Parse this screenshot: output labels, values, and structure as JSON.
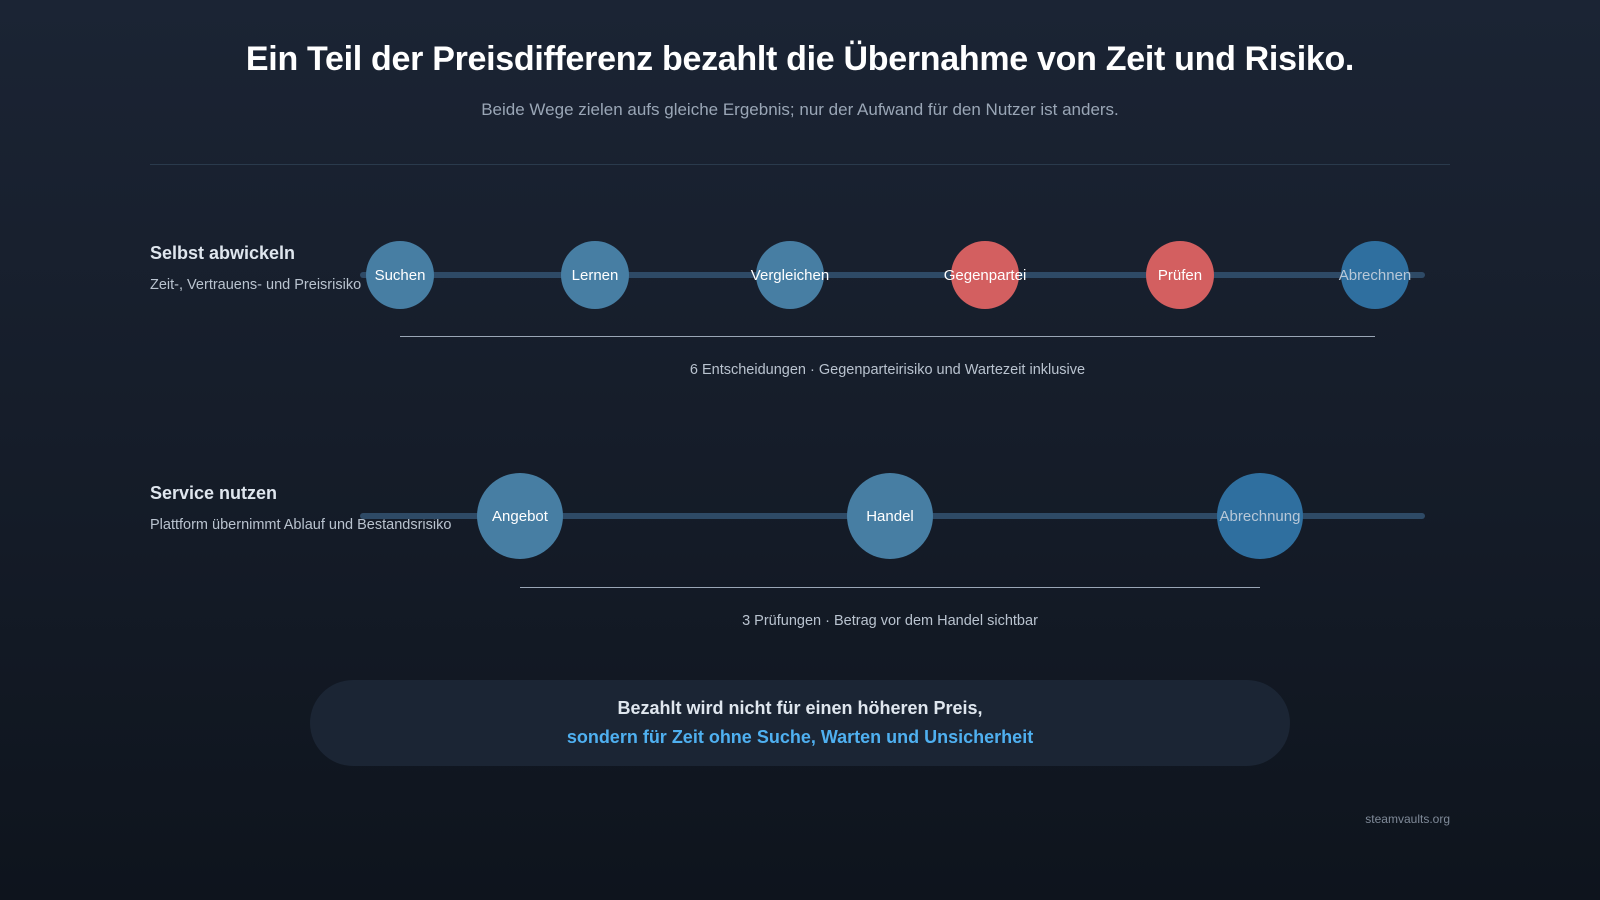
{
  "header": {
    "title": "Ein Teil der Preisdifferenz bezahlt die Übernahme von Zeit und Risiko.",
    "subtitle": "Beide Wege zielen aufs gleiche Ergebnis; nur der Aufwand für den Nutzer ist anders."
  },
  "rows": [
    {
      "label": "Selbst abwickeln",
      "description": "Zeit-, Vertrauens- und Preisrisiko",
      "steps": [
        {
          "label": "Suchen",
          "status": "normal"
        },
        {
          "label": "Lernen",
          "status": "normal"
        },
        {
          "label": "Vergleichen",
          "status": "normal"
        },
        {
          "label": "Gegenpartei",
          "status": "risk"
        },
        {
          "label": "Prüfen",
          "status": "risk"
        },
        {
          "label": "Abrechnen",
          "status": "final"
        }
      ],
      "summary": "6 Entscheidungen · Gegenparteirisiko und Wartezeit inklusive"
    },
    {
      "label": "Service nutzen",
      "description": "Plattform übernimmt Ablauf und Bestandsrisiko",
      "steps": [
        {
          "label": "Angebot",
          "status": "normal"
        },
        {
          "label": "Handel",
          "status": "normal"
        },
        {
          "label": "Abrechnung",
          "status": "final"
        }
      ],
      "summary": "3 Prüfungen · Betrag vor dem Handel sichtbar"
    }
  ],
  "callout": {
    "line1": "Bezahlt wird nicht für einen höheren Preis,",
    "line2": "sondern für Zeit ohne Suche, Warten und Unsicherheit"
  },
  "footer": {
    "source": "steamvaults.org"
  },
  "colors": {
    "normal": "#477ea3",
    "risk": "#d35f60",
    "final": "#2f6f9f",
    "accent": "#4fb0f0"
  }
}
